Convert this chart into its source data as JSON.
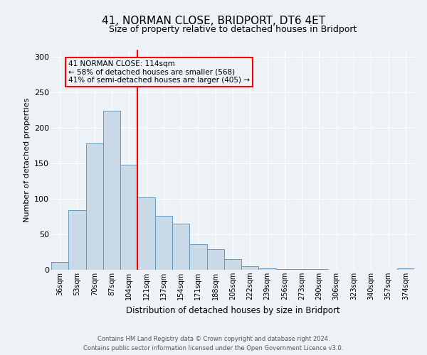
{
  "title": "41, NORMAN CLOSE, BRIDPORT, DT6 4ET",
  "subtitle": "Size of property relative to detached houses in Bridport",
  "xlabel": "Distribution of detached houses by size in Bridport",
  "ylabel": "Number of detached properties",
  "bar_labels": [
    "36sqm",
    "53sqm",
    "70sqm",
    "87sqm",
    "104sqm",
    "121sqm",
    "137sqm",
    "154sqm",
    "171sqm",
    "188sqm",
    "205sqm",
    "222sqm",
    "239sqm",
    "256sqm",
    "273sqm",
    "290sqm",
    "306sqm",
    "323sqm",
    "340sqm",
    "357sqm",
    "374sqm"
  ],
  "bar_values": [
    11,
    84,
    178,
    224,
    148,
    102,
    76,
    65,
    36,
    29,
    15,
    5,
    2,
    1,
    1,
    1,
    0,
    0,
    0,
    0,
    2
  ],
  "bar_color": "#c9d9e8",
  "bar_edge_color": "#6699bb",
  "vline_color": "red",
  "annotation_line1": "41 NORMAN CLOSE: 114sqm",
  "annotation_line2": "← 58% of detached houses are smaller (568)",
  "annotation_line3": "41% of semi-detached houses are larger (405) →",
  "annotation_box_color": "red",
  "ylim": [
    0,
    310
  ],
  "yticks": [
    0,
    50,
    100,
    150,
    200,
    250,
    300
  ],
  "footer_line1": "Contains HM Land Registry data © Crown copyright and database right 2024.",
  "footer_line2": "Contains public sector information licensed under the Open Government Licence v3.0.",
  "background_color": "#edf2f7",
  "grid_color": "white",
  "title_fontsize": 11,
  "subtitle_fontsize": 9
}
